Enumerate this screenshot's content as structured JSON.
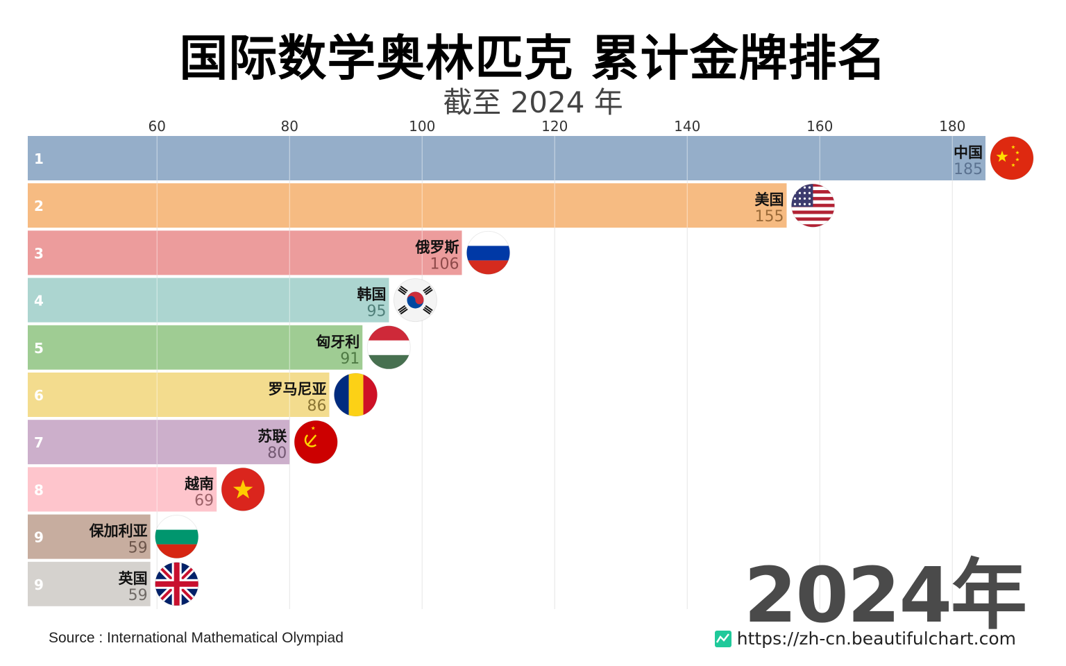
{
  "title": "国际数学奥林匹克 累计金牌排名",
  "subtitle": "截至 2024 年",
  "year_label": "2024年",
  "source": "Source : International Mathematical Olympiad",
  "website": "https://zh-cn.beautifulchart.com",
  "chart_data": {
    "type": "bar",
    "orientation": "horizontal",
    "x_ticks": [
      60,
      80,
      100,
      120,
      140,
      160,
      180
    ],
    "xlim": [
      40.5,
      188
    ],
    "grid": true,
    "bars": [
      {
        "rank": "1",
        "name": "中国",
        "value": 185,
        "color": "#95aec9",
        "text_color": "#5b7290",
        "flag": "china-flag"
      },
      {
        "rank": "2",
        "name": "美国",
        "value": 155,
        "color": "#f6bb82",
        "text_color": "#9a6a38",
        "flag": "usa-flag"
      },
      {
        "rank": "3",
        "name": "俄罗斯",
        "value": 106,
        "color": "#ec9c9c",
        "text_color": "#8e4a4a",
        "flag": "russia-flag"
      },
      {
        "rank": "4",
        "name": "韩国",
        "value": 95,
        "color": "#acd5d0",
        "text_color": "#4f7f79",
        "flag": "korea-flag"
      },
      {
        "rank": "5",
        "name": "匈牙利",
        "value": 91,
        "color": "#9fcc93",
        "text_color": "#4e7a44",
        "flag": "hungary-flag"
      },
      {
        "rank": "6",
        "name": "罗马尼亚",
        "value": 86,
        "color": "#f3dc8e",
        "text_color": "#8b7534",
        "flag": "romania-flag"
      },
      {
        "rank": "7",
        "name": "苏联",
        "value": 80,
        "color": "#ccafcb",
        "text_color": "#735872",
        "flag": "ussr-flag"
      },
      {
        "rank": "8",
        "name": "越南",
        "value": 69,
        "color": "#fec5cc",
        "text_color": "#9b6168",
        "flag": "vietnam-flag"
      },
      {
        "rank": "9",
        "name": "保加利亚",
        "value": 59,
        "color": "#c7ad9f",
        "text_color": "#6d564b",
        "flag": "bulgaria-flag"
      },
      {
        "rank": "9",
        "name": "英国",
        "value": 59,
        "color": "#d5d2ce",
        "text_color": "#6f6a66",
        "flag": "uk-flag"
      }
    ]
  }
}
